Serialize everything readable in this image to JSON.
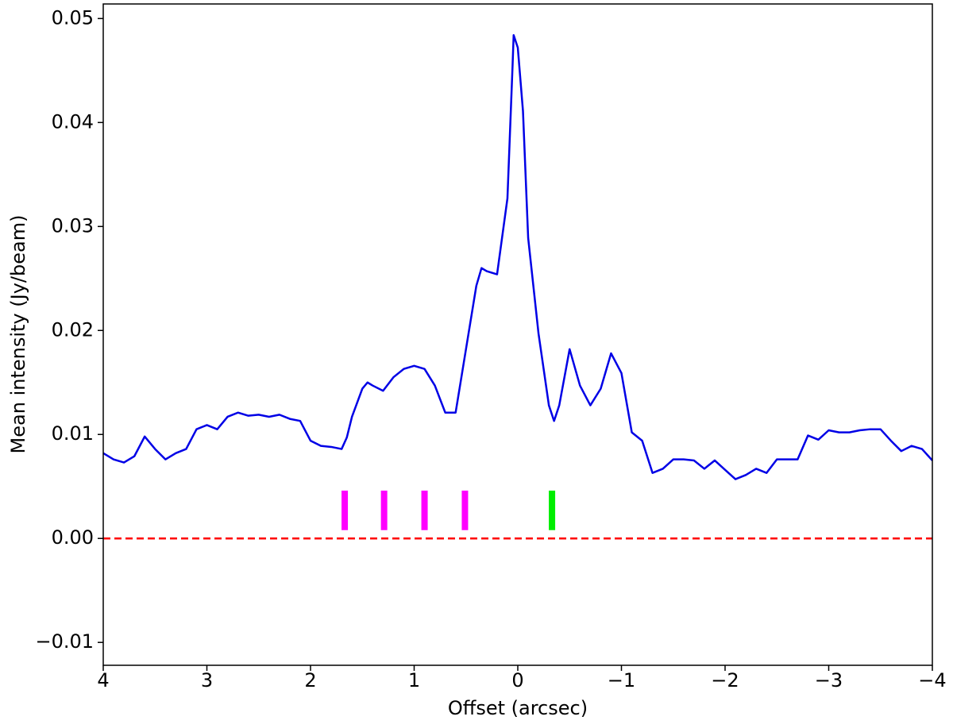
{
  "chart_data": {
    "type": "line",
    "xlabel": "Offset (arcsec)",
    "ylabel": "Mean intensity (Jy/beam)",
    "x": [
      4,
      3.9,
      3.8,
      3.7,
      3.6,
      3.5,
      3.4,
      3.3,
      3.2,
      3.1,
      3.0,
      2.9,
      2.8,
      2.7,
      2.6,
      2.5,
      2.4,
      2.3,
      2.2,
      2.1,
      2.0,
      1.9,
      1.8,
      1.7,
      1.65,
      1.6,
      1.5,
      1.45,
      1.4,
      1.3,
      1.2,
      1.1,
      1.0,
      0.9,
      0.8,
      0.7,
      0.6,
      0.5,
      0.4,
      0.35,
      0.3,
      0.2,
      0.1,
      0.05,
      0.04,
      0.0,
      -0.05,
      -0.1,
      -0.2,
      -0.3,
      -0.35,
      -0.4,
      -0.5,
      -0.6,
      -0.7,
      -0.8,
      -0.9,
      -1.0,
      -1.1,
      -1.2,
      -1.3,
      -1.4,
      -1.5,
      -1.6,
      -1.7,
      -1.8,
      -1.9,
      -2.0,
      -2.1,
      -2.2,
      -2.3,
      -2.4,
      -2.5,
      -2.6,
      -2.7,
      -2.8,
      -2.9,
      -3.0,
      -3.1,
      -3.2,
      -3.3,
      -3.4,
      -3.5,
      -3.6,
      -3.7,
      -3.8,
      -3.9,
      -4.0
    ],
    "series": [
      {
        "name": "Mean intensity",
        "color": "#0000e6",
        "values": [
          0.0082,
          0.0076,
          0.0073,
          0.0079,
          0.0098,
          0.0086,
          0.0076,
          0.0082,
          0.0086,
          0.0105,
          0.0109,
          0.0105,
          0.0117,
          0.0121,
          0.0118,
          0.0119,
          0.0117,
          0.0119,
          0.0115,
          0.0113,
          0.0094,
          0.0089,
          0.0088,
          0.0086,
          0.0097,
          0.0117,
          0.0144,
          0.015,
          0.0147,
          0.0142,
          0.0155,
          0.0163,
          0.0166,
          0.0163,
          0.0147,
          0.0121,
          0.0121,
          0.0182,
          0.0243,
          0.026,
          0.0257,
          0.0254,
          0.0327,
          0.0456,
          0.0484,
          0.0472,
          0.0411,
          0.0289,
          0.0197,
          0.0128,
          0.0113,
          0.0128,
          0.0182,
          0.0147,
          0.0128,
          0.0144,
          0.0178,
          0.0159,
          0.0102,
          0.0094,
          0.0063,
          0.0067,
          0.0076,
          0.0076,
          0.0075,
          0.0067,
          0.0075,
          0.0066,
          0.0057,
          0.0061,
          0.0067,
          0.0063,
          0.0076,
          0.0076,
          0.0076,
          0.0099,
          0.0095,
          0.0104,
          0.0102,
          0.0102,
          0.0104,
          0.0105,
          0.0105,
          0.0094,
          0.0084,
          0.0089,
          0.0086,
          0.0075
        ]
      }
    ],
    "markers": [
      {
        "x": 1.67,
        "y": [
          0.0008,
          0.0046
        ],
        "color": "#ff00ff"
      },
      {
        "x": 1.29,
        "y": [
          0.0008,
          0.0046
        ],
        "color": "#ff00ff"
      },
      {
        "x": 0.9,
        "y": [
          0.0008,
          0.0046
        ],
        "color": "#ff00ff"
      },
      {
        "x": 0.51,
        "y": [
          0.0008,
          0.0046
        ],
        "color": "#ff00ff"
      },
      {
        "x": -0.33,
        "y": [
          0.0008,
          0.0046
        ],
        "color": "#00ee00"
      }
    ],
    "hline": {
      "y": 0,
      "color": "#ff0000",
      "style": "dashed"
    },
    "xlim": [
      4,
      -4
    ],
    "xticks": [
      4,
      3,
      2,
      1,
      0,
      {
        "value": -1,
        "label": "−1"
      },
      {
        "value": -2,
        "label": "−2"
      },
      {
        "value": -3,
        "label": "−3"
      },
      {
        "value": -4,
        "label": "−4"
      }
    ],
    "ylim": [
      -0.0122,
      0.0514
    ],
    "yticks": [
      {
        "value": -0.01,
        "label": "−0.01"
      },
      {
        "value": 0,
        "label": "0.00"
      },
      0.01,
      0.02,
      0.03,
      0.04,
      0.05
    ],
    "grid": false
  }
}
